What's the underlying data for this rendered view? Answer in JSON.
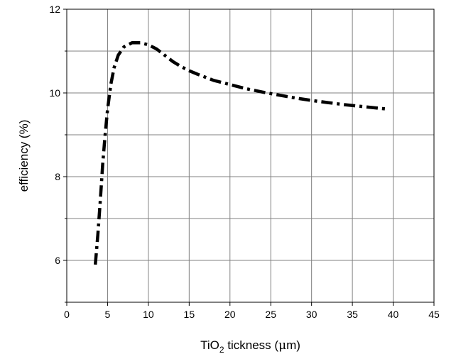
{
  "chart_data": {
    "type": "line",
    "title": "",
    "xlabel": {
      "prefix": "TiO",
      "subscript": "2",
      "suffix": " tickness (",
      "mu": "μ",
      "unit_tail": "m)"
    },
    "ylabel": "efficiency (%)",
    "xlim": [
      0,
      45
    ],
    "ylim": [
      5,
      12
    ],
    "xticks": [
      0,
      5,
      10,
      15,
      20,
      25,
      30,
      35,
      40,
      45
    ],
    "yticks": [
      6,
      8,
      10,
      12
    ],
    "grid": true,
    "line_style": "dash-dot",
    "line_color": "#000000",
    "series": [
      {
        "x": [
          3.5,
          3.8,
          4.1,
          4.4,
          4.7,
          5.0,
          5.4,
          5.8,
          6.3,
          7.0,
          8.0,
          9.0,
          10.0,
          11.0,
          12.0,
          13.0,
          14.0,
          15.0,
          16.0,
          18.0,
          20.0,
          22.0,
          24.0,
          26.0,
          28.0,
          30.0,
          32.0,
          34.0,
          36.0,
          38.0,
          39.0
        ],
        "y": [
          5.9,
          6.6,
          7.4,
          8.3,
          9.0,
          9.6,
          10.2,
          10.6,
          10.9,
          11.1,
          11.2,
          11.2,
          11.15,
          11.05,
          10.9,
          10.75,
          10.63,
          10.53,
          10.45,
          10.3,
          10.2,
          10.1,
          10.02,
          9.95,
          9.88,
          9.82,
          9.77,
          9.72,
          9.68,
          9.64,
          9.62
        ]
      }
    ]
  }
}
